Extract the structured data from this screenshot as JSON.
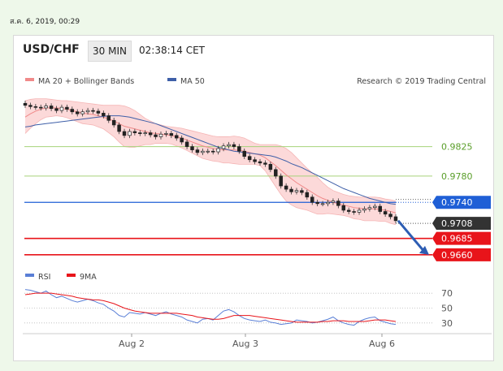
{
  "timestamp": "ส.ค. 6, 2019, 00:29",
  "header": {
    "symbol": "USD/CHF",
    "interval": "30 MIN",
    "time": "02:38:14 CET"
  },
  "chart_data": [
    {
      "type": "candlestick",
      "title": "USD/CHF",
      "legend": [
        {
          "name": "MA 20 + Bollinger Bands",
          "color": "#f08a8a"
        },
        {
          "name": "MA 50",
          "color": "#3e5fa8"
        }
      ],
      "credit": "Research © 2019 Trading Central",
      "x_ticks": [
        "Aug 2",
        "Aug 3",
        "Aug 6"
      ],
      "ylim": [
        0.964,
        0.99
      ],
      "close_series": [
        0.9888,
        0.9886,
        0.9885,
        0.9884,
        0.9887,
        0.9883,
        0.988,
        0.9885,
        0.9882,
        0.9878,
        0.9875,
        0.9878,
        0.988,
        0.9879,
        0.9876,
        0.9872,
        0.9865,
        0.9858,
        0.9848,
        0.9842,
        0.9848,
        0.9846,
        0.9845,
        0.9846,
        0.9843,
        0.984,
        0.9844,
        0.9845,
        0.9842,
        0.9838,
        0.9832,
        0.9825,
        0.982,
        0.9816,
        0.9818,
        0.9818,
        0.9817,
        0.9822,
        0.9826,
        0.9828,
        0.9825,
        0.9818,
        0.981,
        0.9805,
        0.9802,
        0.98,
        0.9798,
        0.979,
        0.978,
        0.9765,
        0.976,
        0.9756,
        0.9758,
        0.9755,
        0.9748,
        0.974,
        0.9738,
        0.9738,
        0.974,
        0.9742,
        0.9735,
        0.9728,
        0.9726,
        0.9725,
        0.9728,
        0.973,
        0.9732,
        0.9734,
        0.9726,
        0.9722,
        0.9718,
        0.9712
      ],
      "ma20": [
        0.987,
        0.9875,
        0.9879,
        0.9882,
        0.9884,
        0.9884,
        0.9884,
        0.9883,
        0.9882,
        0.988,
        0.9878,
        0.9876,
        0.9875,
        0.9874,
        0.9872,
        0.987,
        0.9867,
        0.9864,
        0.986,
        0.9856,
        0.9854,
        0.9852,
        0.985,
        0.9848,
        0.9846,
        0.9845,
        0.9844,
        0.9843,
        0.9842,
        0.984,
        0.9838,
        0.9835,
        0.9832,
        0.9829,
        0.9826,
        0.9824,
        0.9822,
        0.9821,
        0.982,
        0.982,
        0.982,
        0.9819,
        0.9818,
        0.9816,
        0.9814,
        0.9812,
        0.9808,
        0.9802,
        0.9796,
        0.9789,
        0.9782,
        0.9776,
        0.977,
        0.9765,
        0.976,
        0.9755,
        0.975,
        0.9746,
        0.9743,
        0.974,
        0.9738,
        0.9736,
        0.9734,
        0.9732,
        0.9731,
        0.973,
        0.973,
        0.973,
        0.9729,
        0.9728,
        0.9726,
        0.9724
      ],
      "bb_upper": [
        0.9895,
        0.9897,
        0.9898,
        0.9898,
        0.9898,
        0.9897,
        0.9896,
        0.9895,
        0.9895,
        0.9894,
        0.9893,
        0.9892,
        0.9891,
        0.989,
        0.9889,
        0.9888,
        0.9888,
        0.9888,
        0.9888,
        0.9887,
        0.9884,
        0.988,
        0.9874,
        0.9868,
        0.9864,
        0.986,
        0.9858,
        0.9856,
        0.9855,
        0.9854,
        0.9853,
        0.9851,
        0.9849,
        0.9847,
        0.9845,
        0.9843,
        0.9841,
        0.984,
        0.984,
        0.984,
        0.9841,
        0.984,
        0.9838,
        0.9834,
        0.983,
        0.9828,
        0.9828,
        0.9828,
        0.9828,
        0.9826,
        0.9822,
        0.9816,
        0.9808,
        0.98,
        0.9792,
        0.9785,
        0.9778,
        0.977,
        0.9763,
        0.9758,
        0.9755,
        0.9752,
        0.975,
        0.9749,
        0.9748,
        0.9748,
        0.9748,
        0.9748,
        0.9747,
        0.9745,
        0.9744,
        0.9742
      ],
      "bb_lower": [
        0.9845,
        0.9853,
        0.986,
        0.9866,
        0.987,
        0.9871,
        0.9872,
        0.9871,
        0.9869,
        0.9866,
        0.9863,
        0.986,
        0.9859,
        0.9858,
        0.9855,
        0.9852,
        0.9846,
        0.984,
        0.9832,
        0.9825,
        0.9824,
        0.9824,
        0.9826,
        0.9828,
        0.9828,
        0.983,
        0.983,
        0.983,
        0.9829,
        0.9826,
        0.9823,
        0.9819,
        0.9815,
        0.9811,
        0.9807,
        0.9805,
        0.9803,
        0.9802,
        0.98,
        0.98,
        0.9799,
        0.9798,
        0.9798,
        0.9798,
        0.9798,
        0.9796,
        0.9788,
        0.9776,
        0.9764,
        0.9752,
        0.9742,
        0.9736,
        0.9732,
        0.973,
        0.9728,
        0.9725,
        0.9722,
        0.9722,
        0.9723,
        0.9722,
        0.9721,
        0.972,
        0.9718,
        0.9715,
        0.9714,
        0.9712,
        0.9712,
        0.9712,
        0.9711,
        0.9711,
        0.9708,
        0.9706
      ],
      "ma50": [
        0.9855,
        0.9856,
        0.9858,
        0.9859,
        0.986,
        0.9861,
        0.9862,
        0.9863,
        0.9864,
        0.9865,
        0.9866,
        0.9867,
        0.9868,
        0.9869,
        0.987,
        0.9871,
        0.9872,
        0.9872,
        0.9872,
        0.9871,
        0.987,
        0.9868,
        0.9866,
        0.9864,
        0.9862,
        0.986,
        0.9857,
        0.9854,
        0.9851,
        0.9848,
        0.9845,
        0.9842,
        0.9839,
        0.9836,
        0.9833,
        0.983,
        0.9827,
        0.9824,
        0.9822,
        0.982,
        0.9818,
        0.9817,
        0.9816,
        0.9815,
        0.9814,
        0.9813,
        0.9812,
        0.9811,
        0.9809,
        0.9806,
        0.9803,
        0.9799,
        0.9796,
        0.9793,
        0.9789,
        0.9785,
        0.9781,
        0.9777,
        0.9773,
        0.9769,
        0.9765,
        0.9761,
        0.9758,
        0.9755,
        0.9752,
        0.9749,
        0.9746,
        0.9744,
        0.9742,
        0.974,
        0.9738,
        0.9737
      ],
      "levels": [
        {
          "value": 0.9825,
          "label": "0.9825",
          "color": "#a6d27a",
          "style": "line",
          "text_color": "#5a9e2a"
        },
        {
          "value": 0.978,
          "label": "0.9780",
          "color": "#a6d27a",
          "style": "line",
          "text_color": "#5a9e2a"
        },
        {
          "value": 0.974,
          "label": "0.9740",
          "color": "#1f5fd6",
          "style": "tag",
          "text_color": "#ffffff"
        },
        {
          "value": 0.9708,
          "label": "0.9708",
          "color": "#333333",
          "style": "tag",
          "text_color": "#ffffff"
        },
        {
          "value": 0.9685,
          "label": "0.9685",
          "color": "#e8141a",
          "style": "tag",
          "text_color": "#ffffff"
        },
        {
          "value": 0.966,
          "label": "0.9660",
          "color": "#e8141a",
          "style": "tag",
          "text_color": "#ffffff"
        }
      ],
      "forecast_arrow": {
        "from": 0.9712,
        "to": 0.966,
        "color": "#2d5db3"
      }
    },
    {
      "type": "line",
      "title": "RSI",
      "legend": [
        {
          "name": "RSI",
          "color": "#5a7fd6"
        },
        {
          "name": "9MA",
          "color": "#e8141a"
        }
      ],
      "y_ticks": [
        70,
        50,
        30
      ],
      "ylim": [
        20,
        80
      ],
      "rsi": [
        75,
        74,
        72,
        70,
        73,
        68,
        64,
        66,
        63,
        60,
        58,
        60,
        62,
        60,
        57,
        55,
        50,
        46,
        40,
        38,
        44,
        43,
        42,
        44,
        42,
        40,
        43,
        45,
        42,
        40,
        38,
        34,
        32,
        30,
        35,
        36,
        34,
        40,
        46,
        48,
        45,
        40,
        36,
        34,
        33,
        32,
        34,
        31,
        30,
        28,
        29,
        30,
        34,
        33,
        32,
        30,
        31,
        33,
        35,
        38,
        33,
        30,
        28,
        27,
        32,
        35,
        37,
        38,
        33,
        31,
        29,
        28
      ],
      "ma9": [
        68,
        69,
        70,
        70,
        70,
        70,
        69,
        68,
        67,
        66,
        64,
        63,
        62,
        61,
        61,
        60,
        58,
        56,
        53,
        50,
        48,
        46,
        45,
        44,
        43,
        43,
        43,
        43,
        43,
        43,
        42,
        41,
        40,
        38,
        37,
        36,
        35,
        35,
        36,
        38,
        40,
        40,
        40,
        40,
        39,
        38,
        37,
        36,
        35,
        34,
        33,
        32,
        31,
        31,
        31,
        31,
        31,
        32,
        32,
        33,
        33,
        33,
        32,
        32,
        32,
        32,
        33,
        34,
        34,
        34,
        33,
        32
      ]
    }
  ]
}
